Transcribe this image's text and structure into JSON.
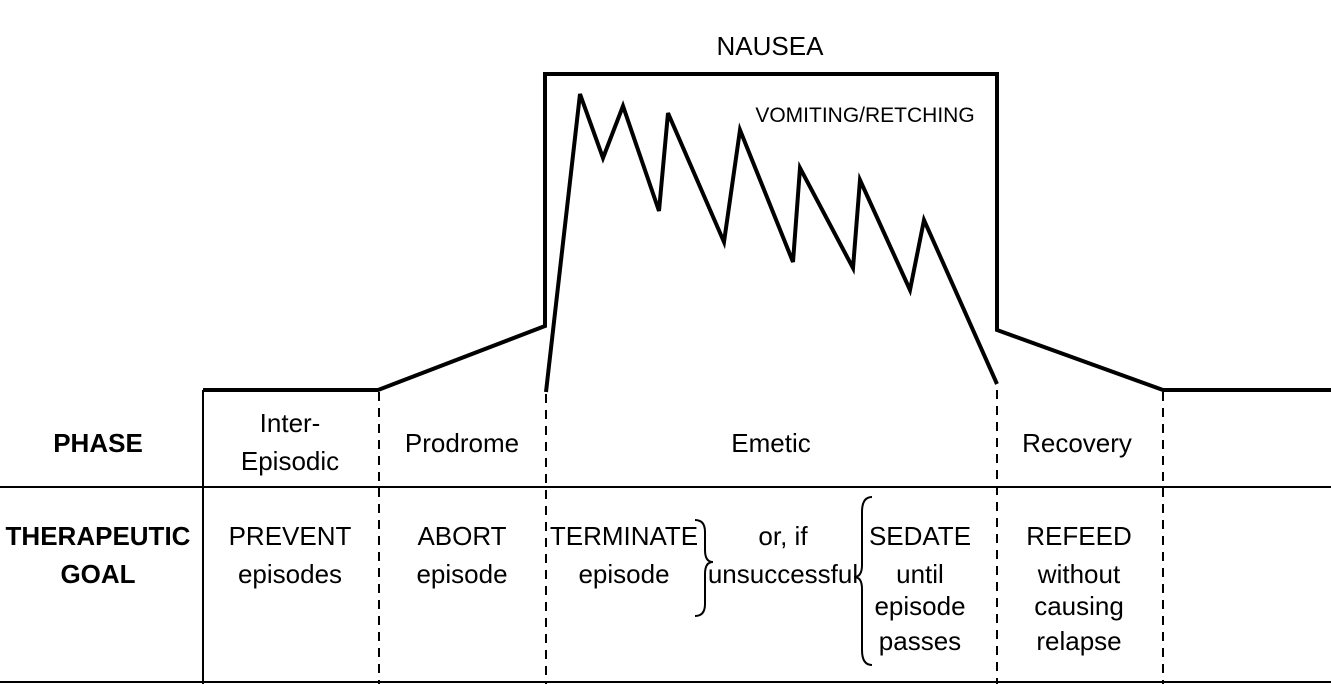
{
  "top_labels": {
    "nausea": "NAUSEA",
    "vomiting": "VOMITING/RETCHING"
  },
  "rows": {
    "phase_header": "PHASE",
    "goal_header_line1": "THERAPEUTIC",
    "goal_header_line2": "GOAL"
  },
  "phases": {
    "inter_line1": "Inter-",
    "inter_line2": "Episodic",
    "prodrome": "Prodrome",
    "emetic": "Emetic",
    "recovery": "Recovery"
  },
  "goals": {
    "prevent_1": "PREVENT",
    "prevent_2": "episodes",
    "abort_1": "ABORT",
    "abort_2": "episode",
    "terminate_1": "TERMINATE",
    "terminate_2": "episode",
    "orif_1": "or, if",
    "orif_2": "unsuccessful",
    "sedate_1": "SEDATE",
    "sedate_2": "until",
    "sedate_3": "episode",
    "sedate_4": "passes",
    "refeed_1": "REFEED",
    "refeed_2": "without",
    "refeed_3": "causing",
    "refeed_4": "relapse"
  }
}
